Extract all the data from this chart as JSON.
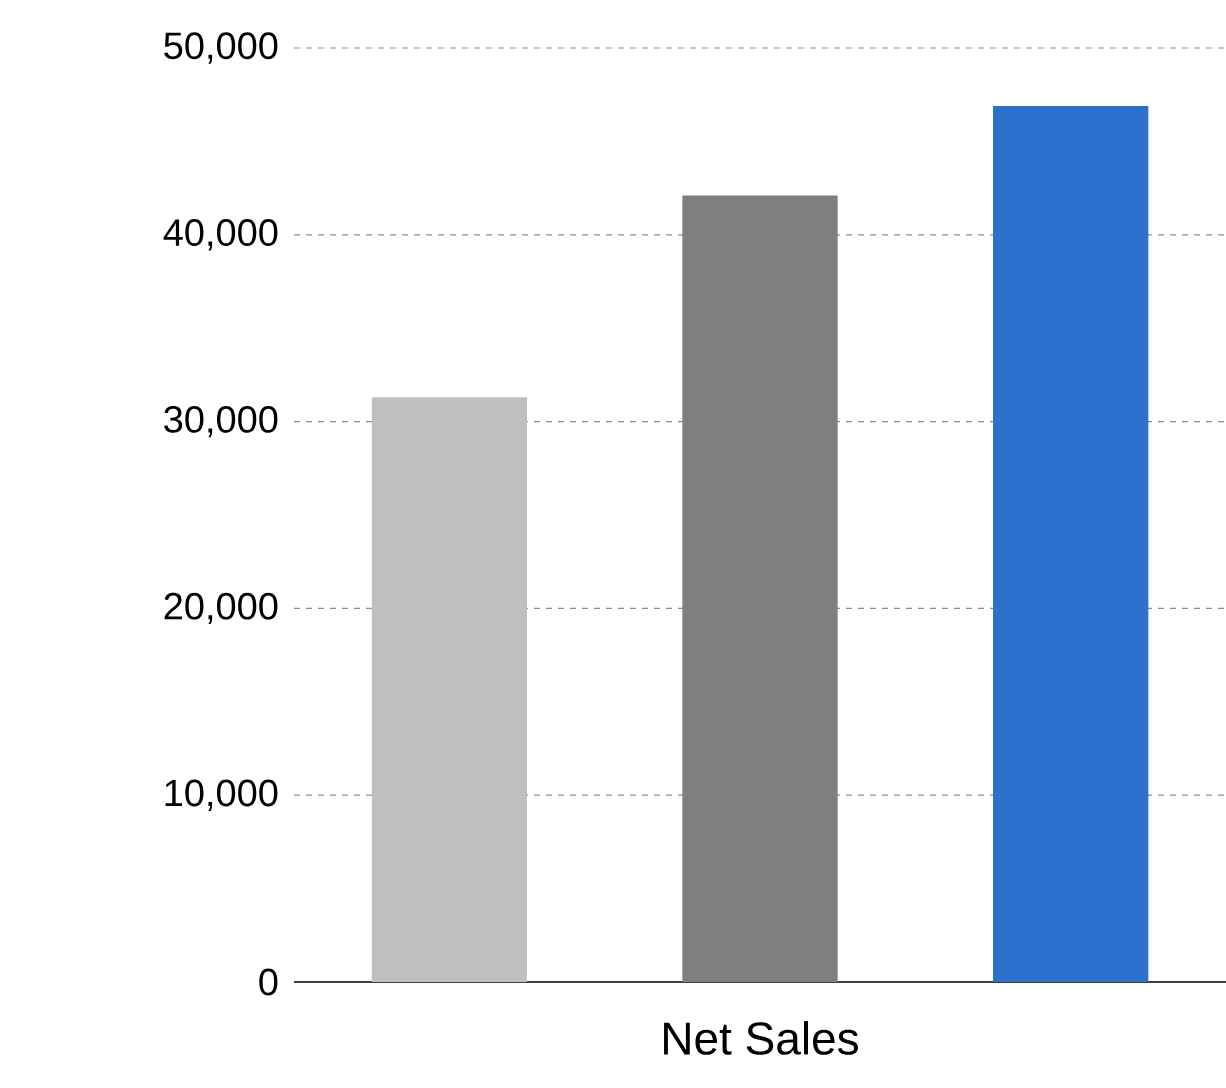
{
  "chart_data": {
    "type": "bar",
    "categories": [
      "Net Sales"
    ],
    "series": [
      {
        "color": "#bfbfbf",
        "values": [
          31300
        ]
      },
      {
        "color": "#7f7f7f",
        "values": [
          42100
        ]
      },
      {
        "color": "#2e71cc",
        "values": [
          46900
        ]
      }
    ],
    "ylim": [
      0,
      50000
    ],
    "yticks": [
      {
        "value": 0,
        "label": "0"
      },
      {
        "value": 10000,
        "label": "10,000"
      },
      {
        "value": 20000,
        "label": "20,000"
      },
      {
        "value": 30000,
        "label": "30,000"
      },
      {
        "value": 40000,
        "label": "40,000"
      },
      {
        "value": 50000,
        "label": "50,000"
      }
    ],
    "grid": "y"
  }
}
